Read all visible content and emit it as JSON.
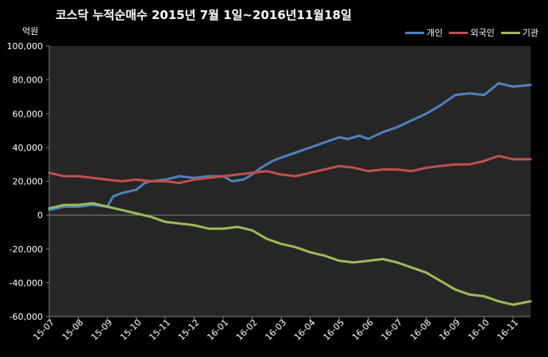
{
  "colors": {
    "background": "#000000",
    "plot_background": "#262626",
    "individual": "#4f81bd",
    "foreign": "#c0504d",
    "institution": "#9bbb59"
  },
  "chart_data": {
    "type": "line",
    "title": "코스닥 누적순매수 2015년 7월 1일~2016년11월18일",
    "unit_label": "억원",
    "legend_position": "top-right",
    "grid": false,
    "ylim": [
      -60000,
      100000
    ],
    "yticks": [
      -60000,
      -40000,
      -20000,
      0,
      20000,
      40000,
      60000,
      80000,
      100000
    ],
    "ytick_labels": [
      "-60,000",
      "-40,000",
      "-20,000",
      "0",
      "20,000",
      "40,000",
      "60,000",
      "80,000",
      "100,000"
    ],
    "xlim": [
      0,
      16.6
    ],
    "xtick_labels": [
      "15-07",
      "15-08",
      "15-09",
      "15-10",
      "15-11",
      "15-12",
      "16-01",
      "16-02",
      "16-03",
      "16-04",
      "16-05",
      "16-06",
      "16-07",
      "16-08",
      "16-09",
      "16-10",
      "16-11"
    ],
    "series": [
      {
        "name": "개인",
        "color": "#4f81bd",
        "x": [
          0,
          0.5,
          1,
          1.5,
          2,
          2.2,
          2.5,
          3,
          3.3,
          3.5,
          4,
          4.5,
          5,
          5.5,
          6,
          6.3,
          6.7,
          7,
          7.3,
          7.7,
          8,
          8.5,
          9,
          9.5,
          10,
          10.3,
          10.7,
          11,
          11.5,
          12,
          12.5,
          13,
          13.5,
          14,
          14.5,
          15,
          15.5,
          16,
          16.6
        ],
        "values": [
          3000,
          5000,
          5000,
          6000,
          5000,
          11000,
          13000,
          15000,
          19000,
          20000,
          21000,
          23000,
          22000,
          23000,
          23000,
          20000,
          21000,
          24000,
          28000,
          32000,
          34000,
          37000,
          40000,
          43000,
          46000,
          45000,
          47000,
          45000,
          49000,
          52000,
          56000,
          60000,
          65000,
          71000,
          72000,
          71000,
          78000,
          76000,
          77000
        ]
      },
      {
        "name": "외국인",
        "color": "#c0504d",
        "x": [
          0,
          0.5,
          1,
          1.5,
          2,
          2.5,
          3,
          3.5,
          4,
          4.5,
          5,
          5.5,
          6,
          6.5,
          7,
          7.5,
          8,
          8.5,
          9,
          9.5,
          10,
          10.5,
          11,
          11.5,
          12,
          12.5,
          13,
          13.5,
          14,
          14.5,
          15,
          15.5,
          16,
          16.6
        ],
        "values": [
          25000,
          23000,
          23000,
          22000,
          21000,
          20000,
          21000,
          20000,
          20000,
          19000,
          21000,
          22000,
          23000,
          24000,
          25000,
          26000,
          24000,
          23000,
          25000,
          27000,
          29000,
          28000,
          26000,
          27000,
          27000,
          26000,
          28000,
          29000,
          30000,
          30000,
          32000,
          35000,
          33000,
          33000
        ]
      },
      {
        "name": "기관",
        "color": "#9bbb59",
        "x": [
          0,
          0.5,
          1,
          1.5,
          2,
          2.5,
          3,
          3.5,
          4,
          4.5,
          5,
          5.5,
          6,
          6.5,
          7,
          7.5,
          8,
          8.5,
          9,
          9.5,
          10,
          10.5,
          11,
          11.5,
          12,
          12.5,
          13,
          13.5,
          14,
          14.5,
          15,
          15.5,
          16,
          16.6
        ],
        "values": [
          4000,
          6000,
          6000,
          7000,
          5000,
          3000,
          1000,
          -1000,
          -4000,
          -5000,
          -6000,
          -8000,
          -8000,
          -7000,
          -9000,
          -14000,
          -17000,
          -19000,
          -22000,
          -24000,
          -27000,
          -28000,
          -27000,
          -26000,
          -28000,
          -31000,
          -34000,
          -39000,
          -44000,
          -47000,
          -48000,
          -51000,
          -53000,
          -51000
        ]
      }
    ]
  }
}
